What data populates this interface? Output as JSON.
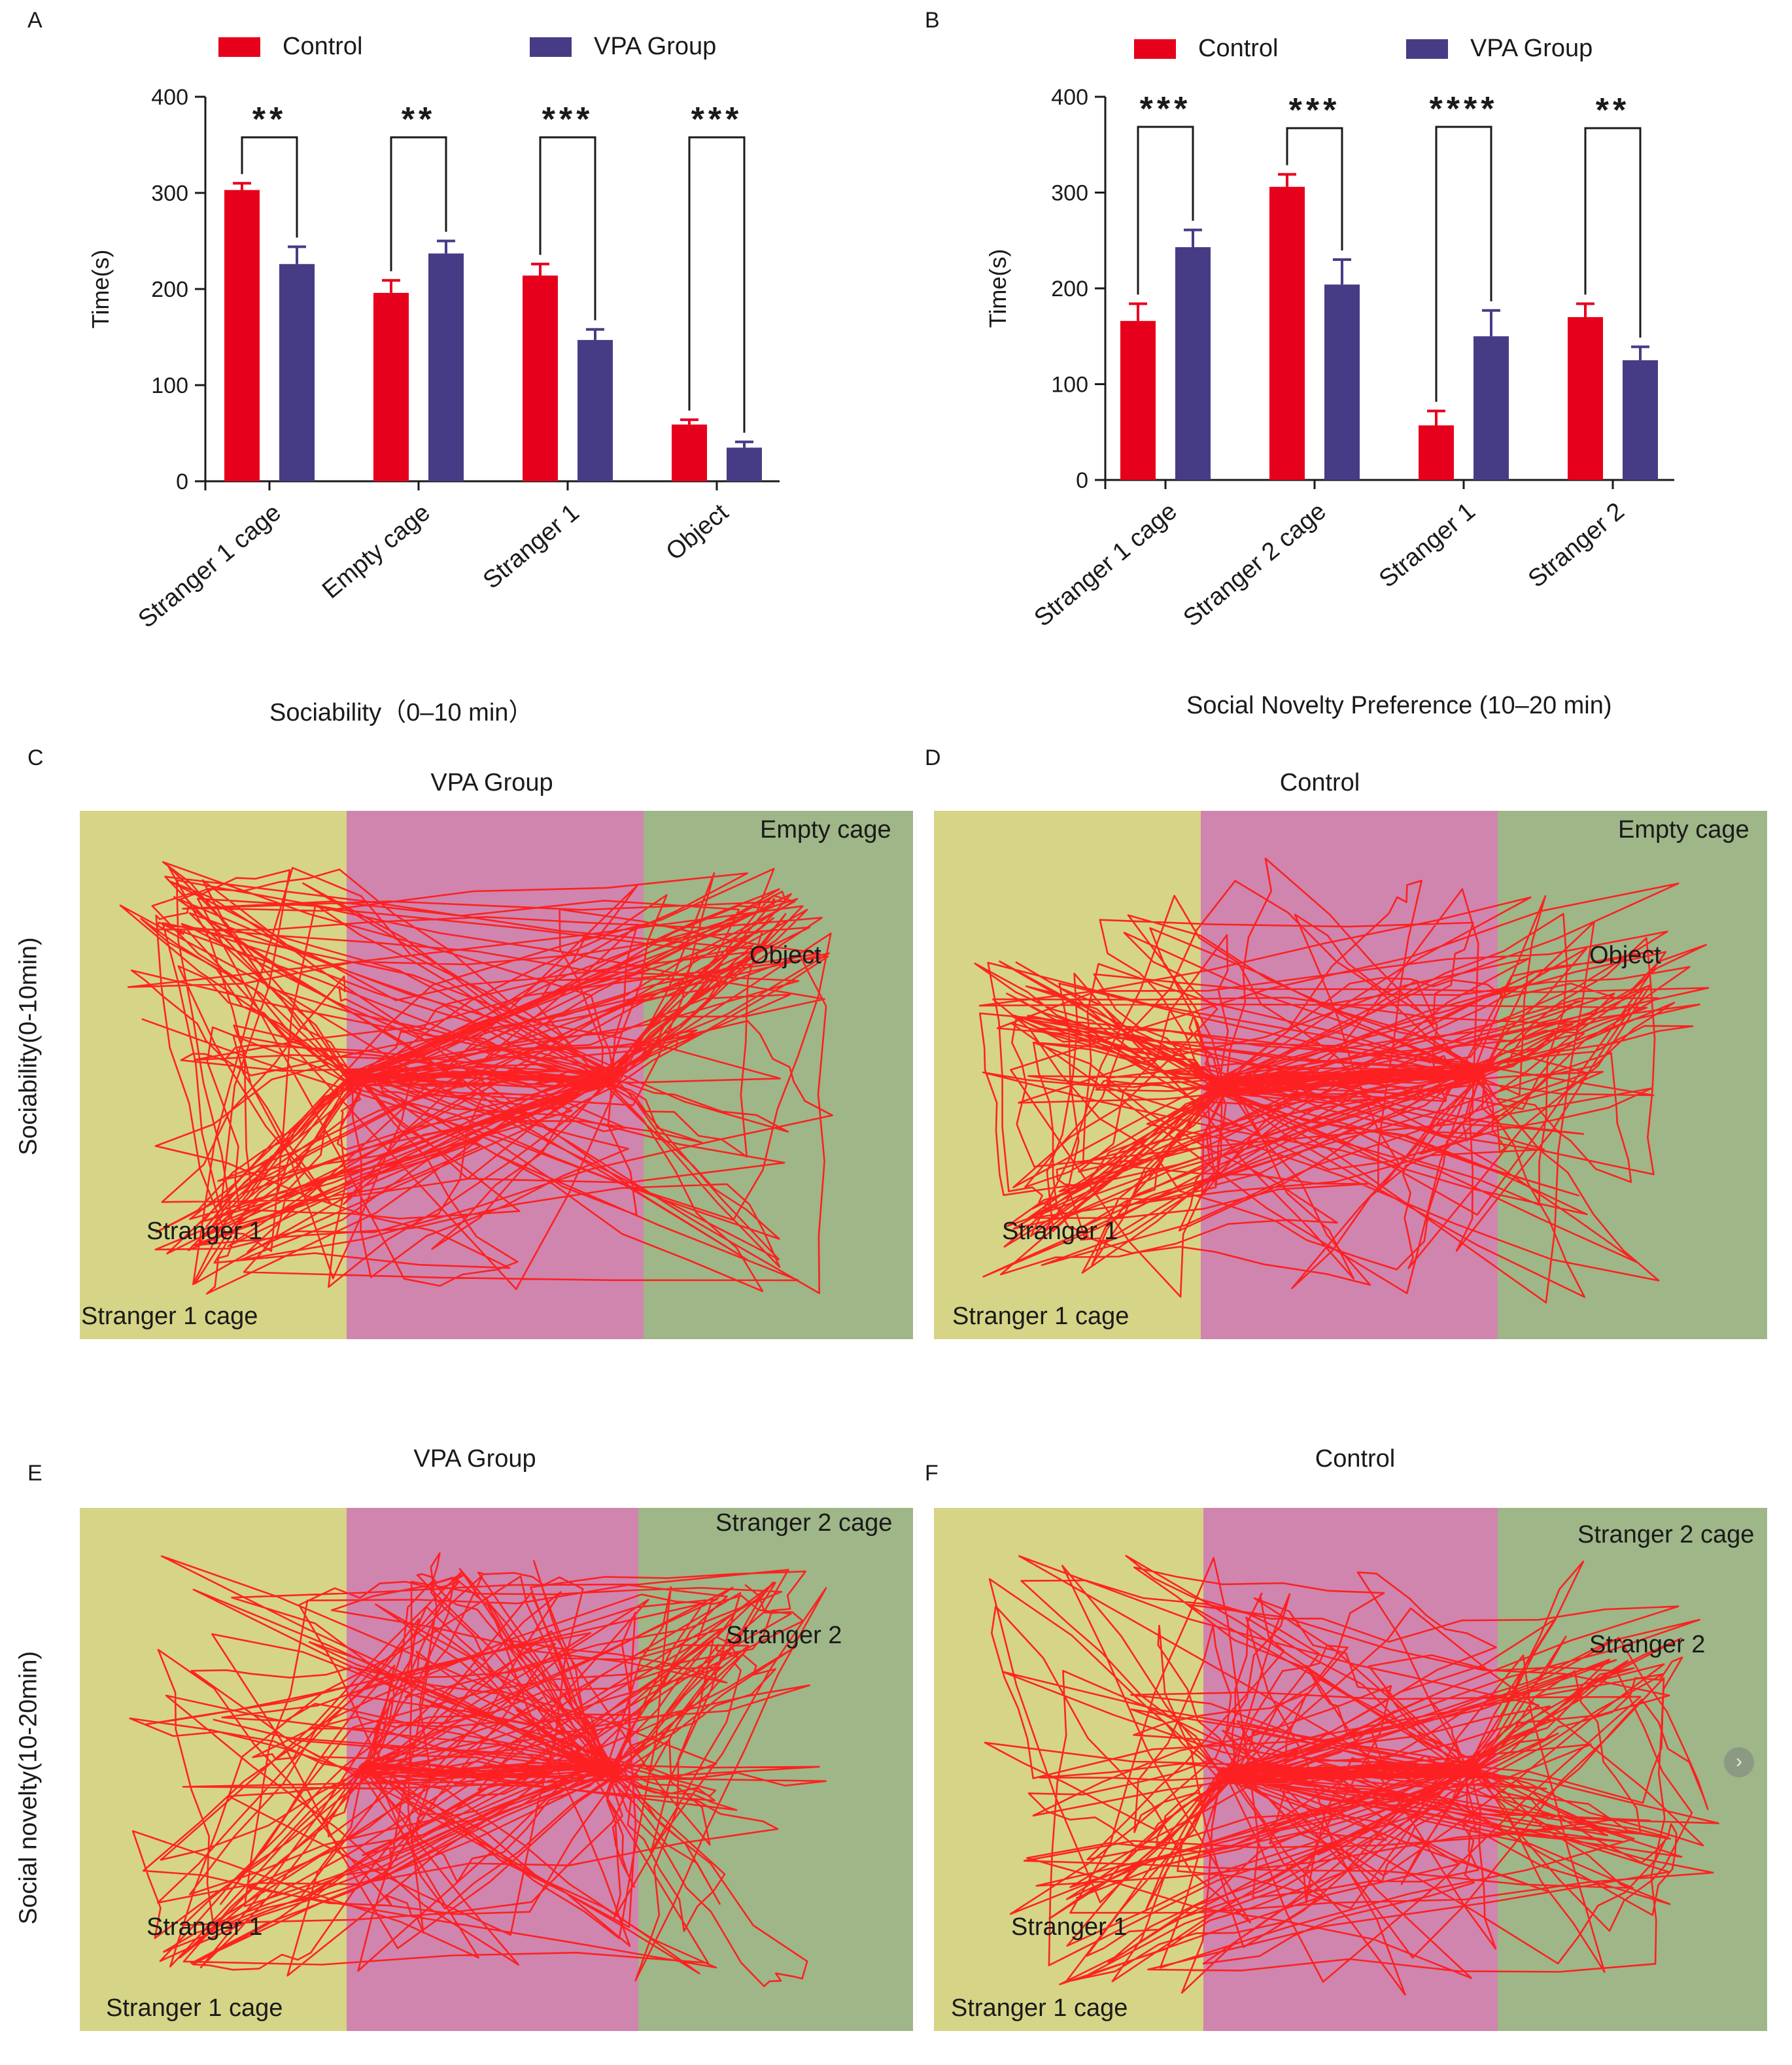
{
  "colors": {
    "control": "#e6001c",
    "vpa": "#463c86",
    "zone_left": "#d6d486",
    "zone_middle": "#cf85ad",
    "zone_right": "#9fb688",
    "track": "#ff1a1a"
  },
  "chart_data": [
    {
      "panel": "A",
      "type": "bar",
      "title": "",
      "xlabel": "Sociability（0–10 min）",
      "ylabel": "Time(s)",
      "ylim": [
        0,
        400
      ],
      "yticks": [
        0,
        100,
        200,
        300,
        400
      ],
      "categories": [
        "Stranger 1 cage",
        "Empty cage",
        "Stranger 1",
        "Object"
      ],
      "series": [
        {
          "name": "Control",
          "values": [
            303,
            196,
            214,
            59
          ],
          "errors": [
            7,
            13,
            12,
            5
          ]
        },
        {
          "name": "VPA Group",
          "values": [
            226,
            237,
            147,
            35
          ],
          "errors": [
            18,
            13,
            11,
            6
          ]
        }
      ],
      "significance": [
        "**",
        "**",
        "***",
        "***"
      ],
      "legend": [
        "Control",
        "VPA Group"
      ]
    },
    {
      "panel": "B",
      "type": "bar",
      "title": "",
      "xlabel": "Social Novelty Preference (10–20 min)",
      "ylabel": "Time(s)",
      "ylim": [
        0,
        400
      ],
      "yticks": [
        0,
        100,
        200,
        300,
        400
      ],
      "categories": [
        "Stranger 1 cage",
        "Stranger 2 cage",
        "Stranger 1",
        "Stranger 2"
      ],
      "series": [
        {
          "name": "Control",
          "values": [
            166,
            306,
            57,
            170
          ],
          "errors": [
            18,
            13,
            15,
            14
          ]
        },
        {
          "name": "VPA Group",
          "values": [
            243,
            204,
            150,
            125
          ],
          "errors": [
            18,
            26,
            27,
            14
          ]
        }
      ],
      "significance": [
        "***",
        "***",
        "****",
        "**"
      ],
      "legend": [
        "Control",
        "VPA Group"
      ]
    }
  ],
  "panels": {
    "A": "A",
    "B": "B",
    "C": "C",
    "D": "D",
    "E": "E",
    "F": "F"
  },
  "rows": {
    "sociability": "Sociability(0-10min)",
    "novelty": "Social novelty(10-20min)"
  },
  "arenas": {
    "C": {
      "title": "VPA Group",
      "labels": [
        "Empty cage",
        "Object",
        "Stranger 1",
        "Stranger 1 cage"
      ]
    },
    "D": {
      "title": "Control",
      "labels": [
        "Empty cage",
        "Object",
        "Stranger 1",
        "Stranger 1 cage"
      ]
    },
    "E": {
      "title": "VPA Group",
      "labels": [
        "Stranger 2 cage",
        "Stranger 2",
        "Stranger 1",
        "Stranger 1 cage"
      ]
    },
    "F": {
      "title": "Control",
      "labels": [
        "Stranger 2 cage",
        "Stranger 2",
        "Stranger 1",
        "Stranger 1 cage"
      ]
    }
  },
  "nav_icon": "chevron-right-icon"
}
